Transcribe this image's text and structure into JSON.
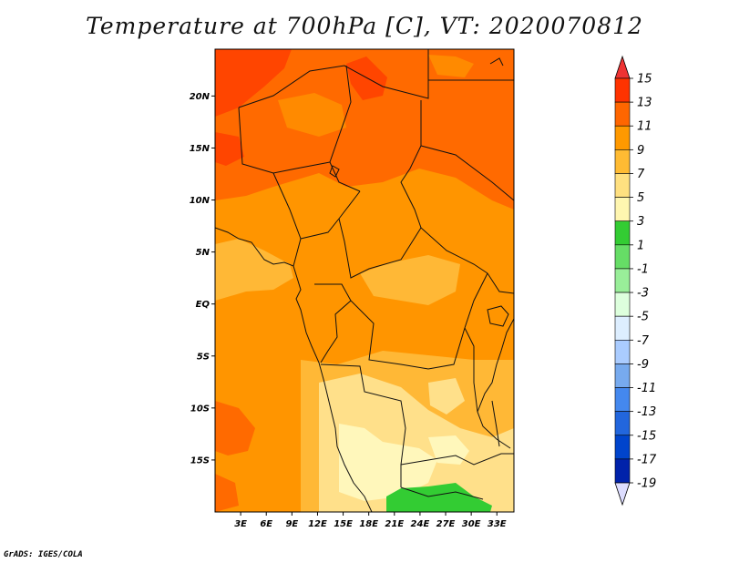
{
  "title": "Temperature at 700hPa [C], VT: 2020070812",
  "credit": "GrADS: IGES/COLA",
  "map": {
    "lon_labels": [
      "3E",
      "6E",
      "9E",
      "12E",
      "15E",
      "18E",
      "21E",
      "24E",
      "27E",
      "30E",
      "33E"
    ],
    "lat_labels": [
      "20N",
      "15N",
      "10N",
      "5N",
      "EQ",
      "5S",
      "10S",
      "15S"
    ],
    "lon_range": [
      0,
      35
    ],
    "lat_range": [
      -20,
      24.5
    ],
    "field_colors": {
      "t13": "#ff4500",
      "t11": "#ff6a00",
      "t9": "#ff9500",
      "t7": "#ffb836",
      "t5": "#ffe08a",
      "t3": "#fff7bb",
      "t1": "#33cc33"
    }
  },
  "colorbar": {
    "labels": [
      "15",
      "13",
      "11",
      "9",
      "7",
      "5",
      "3",
      "1",
      "-1",
      "-3",
      "-5",
      "-7",
      "-9",
      "-11",
      "-13",
      "-15",
      "-17",
      "-19"
    ],
    "colors": [
      "#ff3300",
      "#ff6600",
      "#ff9900",
      "#ffbb33",
      "#ffe080",
      "#fff6b0",
      "#33cc33",
      "#66dd66",
      "#99ee99",
      "#ddffdd",
      "#ddeeff",
      "#aaccff",
      "#77aaee",
      "#4488ee",
      "#2266dd",
      "#0044cc",
      "#0022aa",
      "#001177"
    ],
    "top_color": "#ee3333",
    "bottom_color": "#ddddff"
  }
}
